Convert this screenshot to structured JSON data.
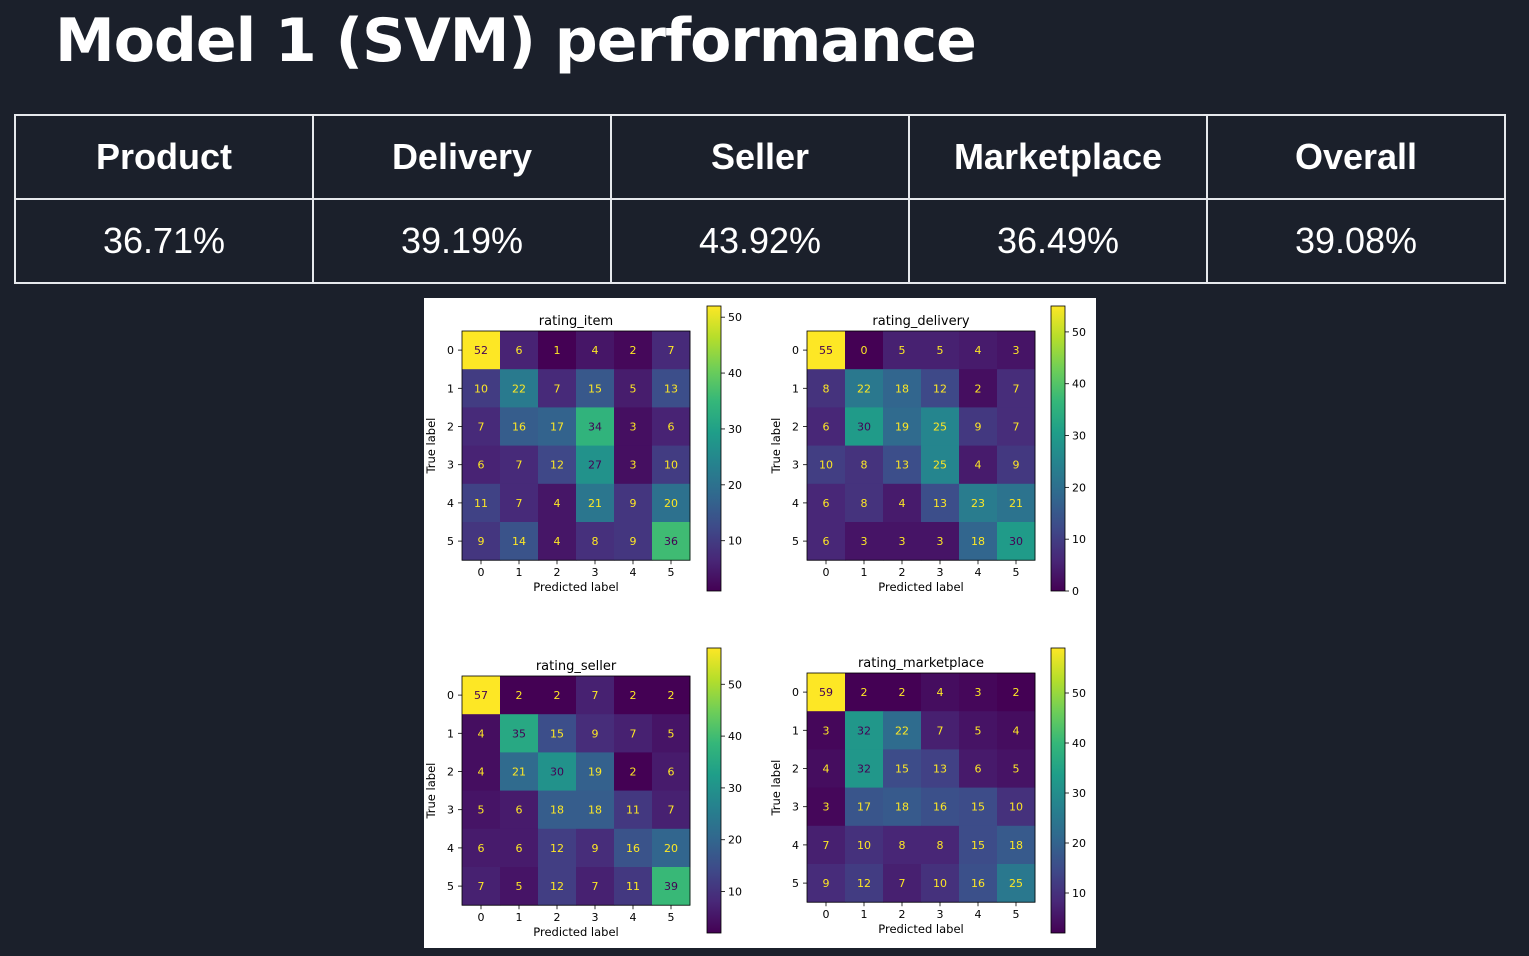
{
  "page": {
    "title": "Model 1 (SVM) performance"
  },
  "scores_table": {
    "headers": [
      "Product",
      "Delivery",
      "Seller",
      "Marketplace",
      "Overall"
    ],
    "values": [
      "36.71%",
      "39.19%",
      "43.92%",
      "36.49%",
      "39.08%"
    ]
  },
  "chart_data": [
    {
      "type": "heatmap",
      "title": "rating_item",
      "xlabel": "Predicted label",
      "ylabel": "True label",
      "x_ticks": [
        "0",
        "1",
        "2",
        "3",
        "4",
        "5"
      ],
      "y_ticks": [
        "0",
        "1",
        "2",
        "3",
        "4",
        "5"
      ],
      "matrix": [
        [
          52,
          6,
          1,
          4,
          2,
          7
        ],
        [
          10,
          22,
          7,
          15,
          5,
          13
        ],
        [
          7,
          16,
          17,
          34,
          3,
          6
        ],
        [
          6,
          7,
          12,
          27,
          3,
          10
        ],
        [
          11,
          7,
          4,
          21,
          9,
          20
        ],
        [
          9,
          14,
          4,
          8,
          9,
          36
        ]
      ],
      "colorbar": {
        "min": 1,
        "max": 52,
        "ticks": [
          10,
          20,
          30,
          40,
          50
        ]
      },
      "colormap": "viridis"
    },
    {
      "type": "heatmap",
      "title": "rating_delivery",
      "xlabel": "Predicted label",
      "ylabel": "True label",
      "x_ticks": [
        "0",
        "1",
        "2",
        "3",
        "4",
        "5"
      ],
      "y_ticks": [
        "0",
        "1",
        "2",
        "3",
        "4",
        "5"
      ],
      "matrix": [
        [
          55,
          0,
          5,
          5,
          4,
          3
        ],
        [
          8,
          22,
          18,
          12,
          2,
          7
        ],
        [
          6,
          30,
          19,
          25,
          9,
          7
        ],
        [
          10,
          8,
          13,
          25,
          4,
          9
        ],
        [
          6,
          8,
          4,
          13,
          23,
          21
        ],
        [
          6,
          3,
          3,
          3,
          18,
          30
        ]
      ],
      "colorbar": {
        "min": 0,
        "max": 55,
        "ticks": [
          0,
          10,
          20,
          30,
          40,
          50
        ]
      },
      "colormap": "viridis"
    },
    {
      "type": "heatmap",
      "title": "rating_seller",
      "xlabel": "Predicted label",
      "ylabel": "True label",
      "x_ticks": [
        "0",
        "1",
        "2",
        "3",
        "4",
        "5"
      ],
      "y_ticks": [
        "0",
        "1",
        "2",
        "3",
        "4",
        "5"
      ],
      "matrix": [
        [
          57,
          2,
          2,
          7,
          2,
          2
        ],
        [
          4,
          35,
          15,
          9,
          7,
          5
        ],
        [
          4,
          21,
          30,
          19,
          2,
          6
        ],
        [
          5,
          6,
          18,
          18,
          11,
          7
        ],
        [
          6,
          6,
          12,
          9,
          16,
          20
        ],
        [
          7,
          5,
          12,
          7,
          11,
          39
        ]
      ],
      "colorbar": {
        "min": 2,
        "max": 57,
        "ticks": [
          10,
          20,
          30,
          40,
          50
        ]
      },
      "colormap": "viridis"
    },
    {
      "type": "heatmap",
      "title": "rating_marketplace",
      "xlabel": "Predicted label",
      "ylabel": "True label",
      "x_ticks": [
        "0",
        "1",
        "2",
        "3",
        "4",
        "5"
      ],
      "y_ticks": [
        "0",
        "1",
        "2",
        "3",
        "4",
        "5"
      ],
      "matrix": [
        [
          59,
          2,
          2,
          4,
          3,
          2
        ],
        [
          3,
          32,
          22,
          7,
          5,
          4
        ],
        [
          4,
          32,
          15,
          13,
          6,
          5
        ],
        [
          3,
          17,
          18,
          16,
          15,
          10
        ],
        [
          7,
          10,
          8,
          8,
          15,
          18
        ],
        [
          9,
          12,
          7,
          10,
          16,
          25
        ]
      ],
      "colorbar": {
        "min": 2,
        "max": 59,
        "ticks": [
          10,
          20,
          30,
          40,
          50
        ]
      },
      "colormap": "viridis"
    }
  ]
}
